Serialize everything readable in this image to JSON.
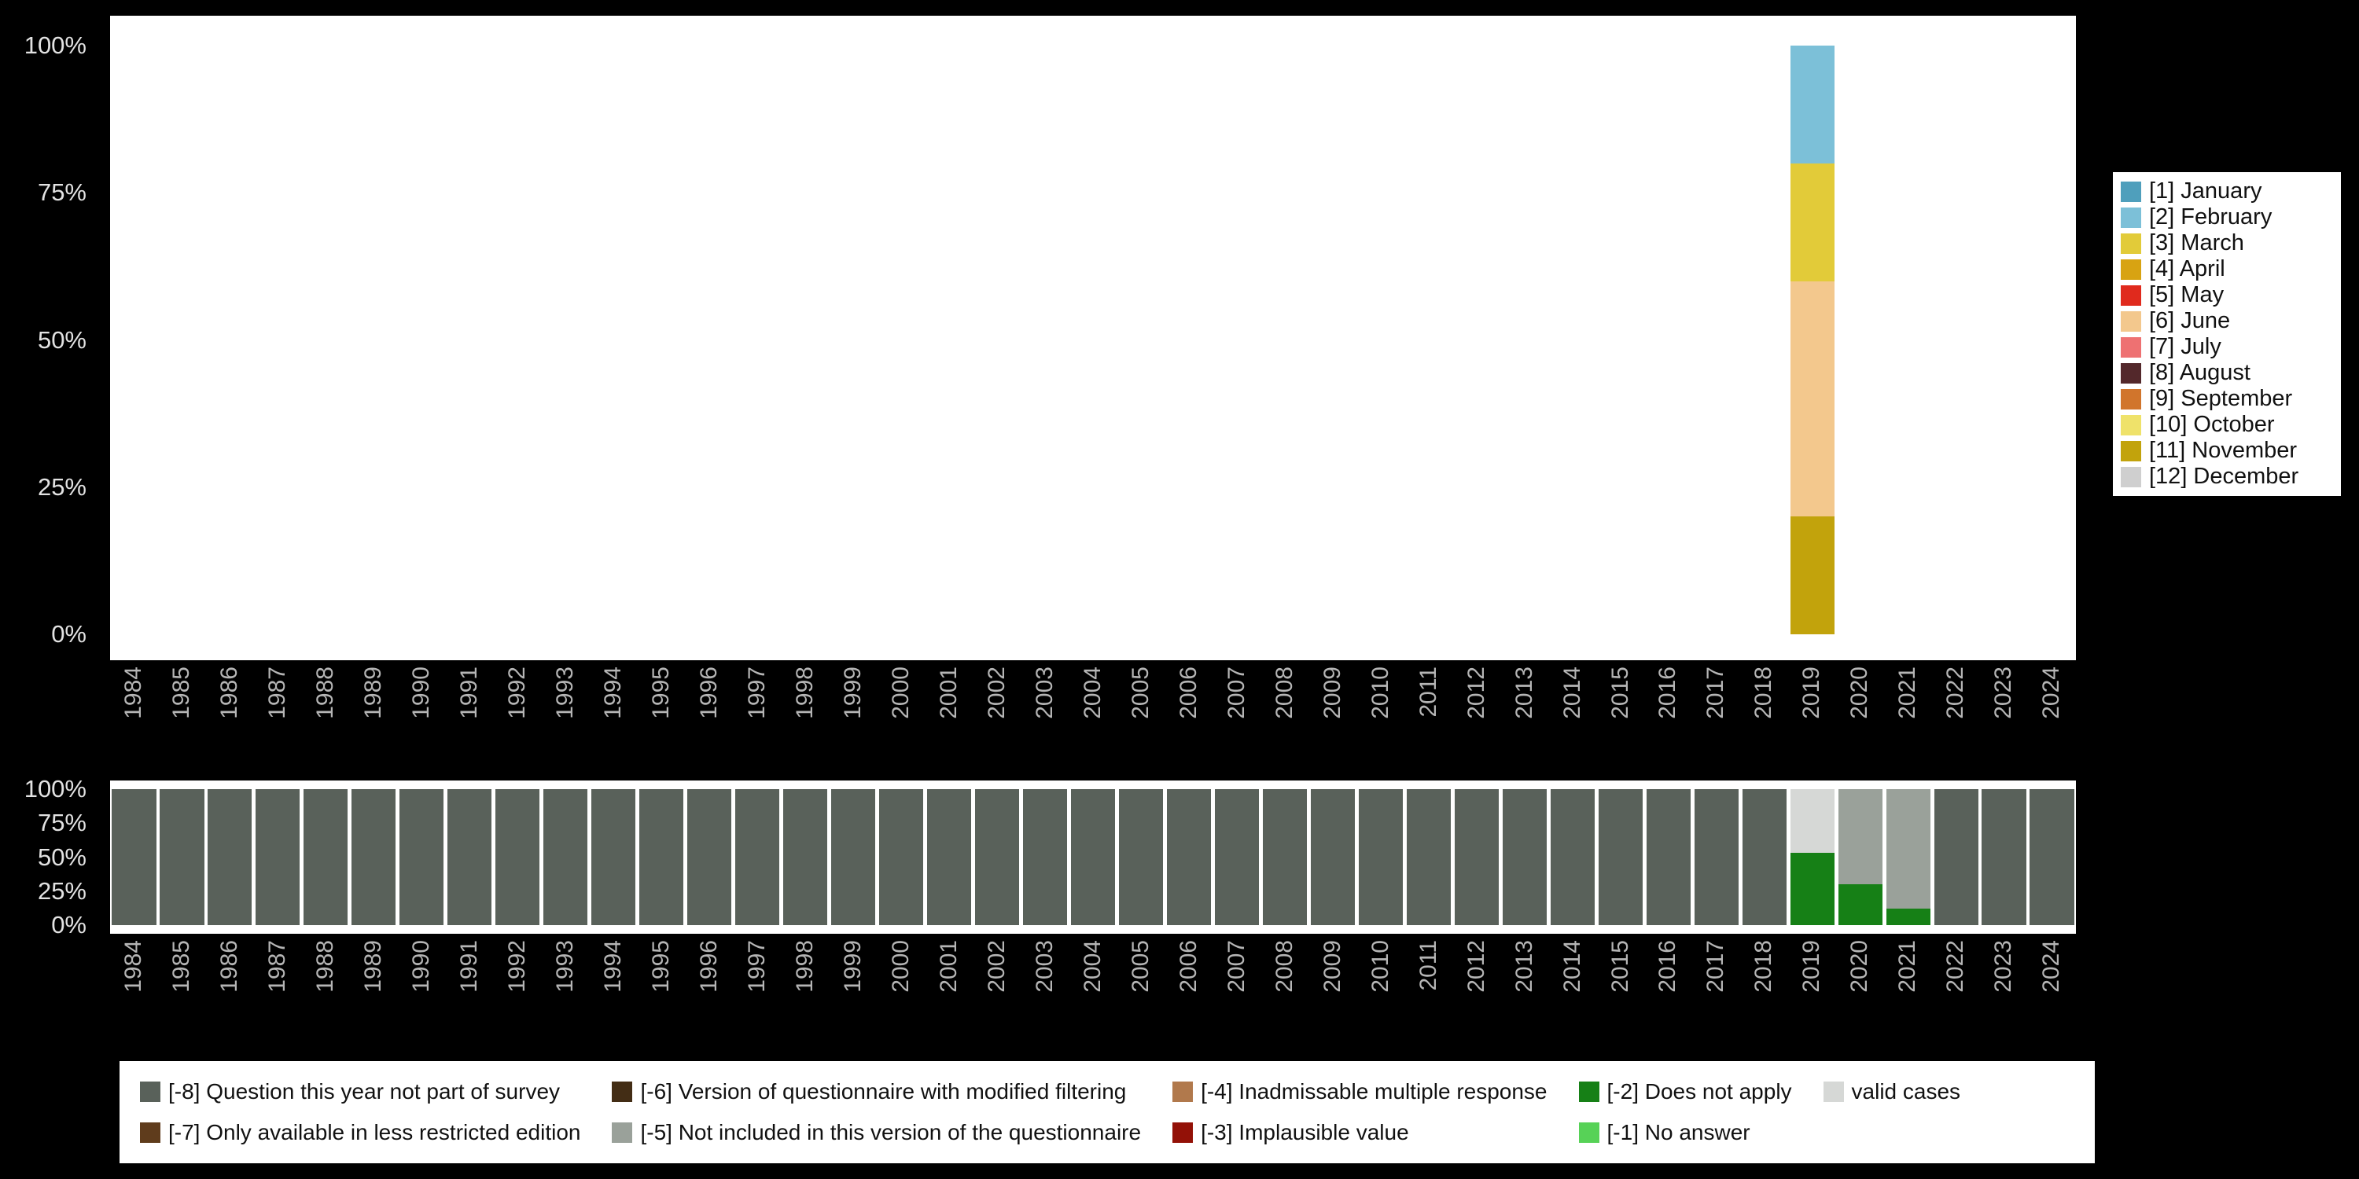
{
  "colors": {
    "page_background": "#000000",
    "plot_background": "#ffffff"
  },
  "palette": {
    "[1] January": "#4f9fbc",
    "[2] February": "#7cc0d8",
    "[3] March": "#e2cb39",
    "[4] April": "#d8a312",
    "[5] May": "#e02a1d",
    "[6] June": "#f3c88d",
    "[7] July": "#ee7172",
    "[8] August": "#53282b",
    "[9] September": "#d1752c",
    "[10] October": "#efe26a",
    "[11] November": "#c2a30c",
    "[12] December": "#cfcfcf",
    "[-8] Question this year not part of survey": "#59615a",
    "[-7] Only available in less restricted edition": "#5f3c1c",
    "[-6] Version of questionnaire with modified filtering": "#432d15",
    "[-5] Not included in this version of the questionnaire": "#9aa19a",
    "[-4] Inadmissable multiple response": "#b1794c",
    "[-3] Implausible value": "#931107",
    "[-2] Does not apply": "#168016",
    "[-1] No answer": "#57d257",
    "valid cases": "#d6d8d6"
  },
  "chart_data": [
    {
      "name": "month-of-interview-distribution",
      "type": "bar",
      "stacked": true,
      "title": "",
      "xlabel": "",
      "ylabel": "",
      "ylim": [
        0,
        100
      ],
      "grid": false,
      "y_ticks": [
        "0%",
        "25%",
        "50%",
        "75%",
        "100%"
      ],
      "categories": [
        "1984",
        "1985",
        "1986",
        "1987",
        "1988",
        "1989",
        "1990",
        "1991",
        "1992",
        "1993",
        "1994",
        "1995",
        "1996",
        "1997",
        "1998",
        "1999",
        "2000",
        "2001",
        "2002",
        "2003",
        "2004",
        "2005",
        "2006",
        "2007",
        "2008",
        "2009",
        "2010",
        "2011",
        "2012",
        "2013",
        "2014",
        "2015",
        "2016",
        "2017",
        "2018",
        "2019",
        "2020",
        "2021",
        "2022",
        "2023",
        "2024"
      ],
      "bars": {
        "2019": [
          {
            "label": "[11] November",
            "value": 20
          },
          {
            "label": "[6] June",
            "value": 40
          },
          {
            "label": "[3] March",
            "value": 20
          },
          {
            "label": "[2] February",
            "value": 20
          }
        ]
      },
      "legend_position": "right",
      "legend": [
        "[1] January",
        "[2] February",
        "[3] March",
        "[4] April",
        "[5] May",
        "[6] June",
        "[7] July",
        "[8] August",
        "[9] September",
        "[10] October",
        "[11] November",
        "[12] December"
      ]
    },
    {
      "name": "missing-values-distribution",
      "type": "bar",
      "stacked": true,
      "title": "",
      "xlabel": "",
      "ylabel": "",
      "ylim": [
        0,
        100
      ],
      "grid": false,
      "y_ticks": [
        "0%",
        "25%",
        "50%",
        "75%",
        "100%"
      ],
      "categories": [
        "1984",
        "1985",
        "1986",
        "1987",
        "1988",
        "1989",
        "1990",
        "1991",
        "1992",
        "1993",
        "1994",
        "1995",
        "1996",
        "1997",
        "1998",
        "1999",
        "2000",
        "2001",
        "2002",
        "2003",
        "2004",
        "2005",
        "2006",
        "2007",
        "2008",
        "2009",
        "2010",
        "2011",
        "2012",
        "2013",
        "2014",
        "2015",
        "2016",
        "2017",
        "2018",
        "2019",
        "2020",
        "2021",
        "2022",
        "2023",
        "2024"
      ],
      "default_segments": [
        {
          "label": "[-8] Question this year not part of survey",
          "value": 100
        }
      ],
      "bars": {
        "2019": [
          {
            "label": "[-2] Does not apply",
            "value": 53
          },
          {
            "label": "valid cases",
            "value": 47
          }
        ],
        "2020": [
          {
            "label": "[-2] Does not apply",
            "value": 30
          },
          {
            "label": "[-5] Not included in this version of the questionnaire",
            "value": 70
          }
        ],
        "2021": [
          {
            "label": "[-2] Does not apply",
            "value": 12
          },
          {
            "label": "[-5] Not included in this version of the questionnaire",
            "value": 88
          }
        ]
      },
      "legend_position": "bottom",
      "legend": [
        "[-8] Question this year not part of survey",
        "[-7] Only available in less restricted edition",
        "[-6] Version of questionnaire with modified filtering",
        "[-5] Not included in this version of the questionnaire",
        "[-4] Inadmissable multiple response",
        "[-3] Implausible value",
        "[-2] Does not apply",
        "[-1] No answer",
        "valid cases"
      ]
    }
  ]
}
